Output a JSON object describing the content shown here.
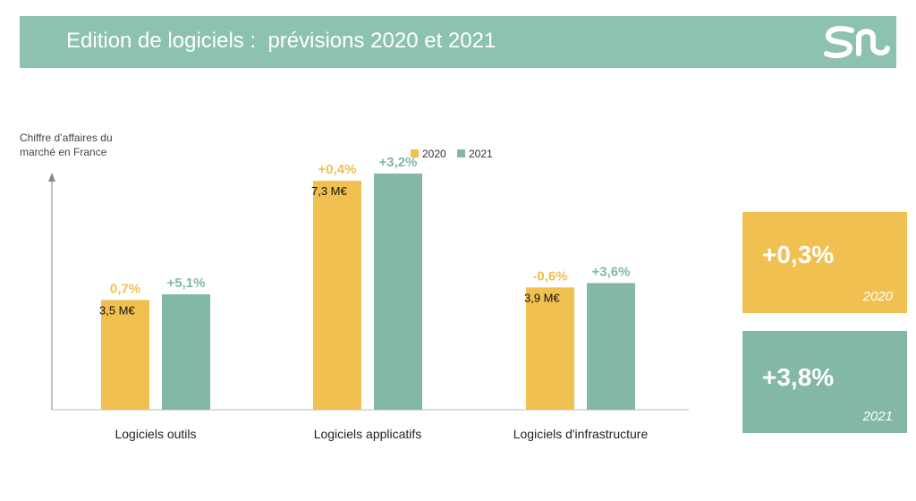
{
  "header": {
    "title": "Edition de logiciels :  prévisions 2020 et 2021"
  },
  "logo": {
    "icon": "sn-logo-icon"
  },
  "colors": {
    "header": "#8dc2ae",
    "y2020": "#f0c050",
    "y2021": "#82b8a4",
    "axis": "#888888"
  },
  "chart_data": {
    "type": "bar",
    "title": "",
    "xlabel": "",
    "ylabel": "Chiffre d’affaires du marché en France",
    "ylabel_lines": [
      "Chiffre d’affaires du",
      "marché en France"
    ],
    "categories": [
      "Logiciels outils",
      "Logiciels applicatifs",
      "Logiciels d'infrastructure"
    ],
    "series": [
      {
        "name": "2020",
        "color": "#f0c050",
        "values": [
          3.5,
          7.3,
          3.9
        ],
        "value_labels": [
          "3,5 M€",
          "7,3 M€",
          "3,9 M€"
        ],
        "growth_labels": [
          "0,7%",
          "+0,4%",
          "-0,6%"
        ]
      },
      {
        "name": "2021",
        "color": "#82b8a4",
        "values": [
          3.68,
          7.53,
          4.04
        ],
        "value_labels": [
          "",
          "",
          ""
        ],
        "growth_labels": [
          "+5,1%",
          "+3,2%",
          "+3,6%"
        ]
      }
    ],
    "legend": "top-center",
    "ylim": [
      0,
      8.5
    ],
    "grid": false
  },
  "summary": [
    {
      "value": "+0,3%",
      "year": "2020",
      "color": "#f0c050"
    },
    {
      "value": "+3,8%",
      "year": "2021",
      "color": "#82b8a4"
    }
  ]
}
